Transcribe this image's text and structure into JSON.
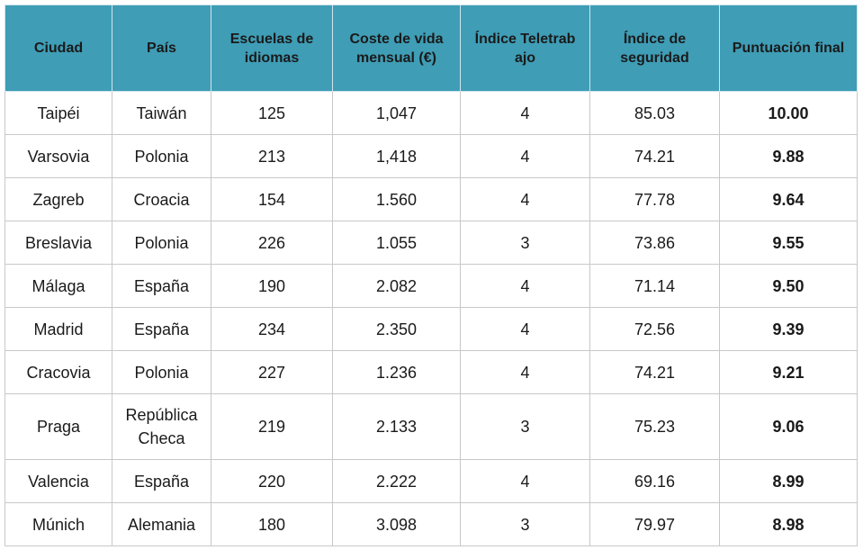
{
  "table": {
    "header": [
      "Ciudad",
      "País",
      "Escuelas de idiomas",
      "Coste de vida mensual (€)",
      "Índice Teletrabajo",
      "Índice de seguridad",
      "Puntuación final"
    ],
    "rows": [
      [
        "Taipéi",
        "Taiwán",
        "125",
        "1,047",
        "4",
        "85.03",
        "10.00"
      ],
      [
        "Varsovia",
        "Polonia",
        "213",
        "1,418",
        "4",
        "74.21",
        "9.88"
      ],
      [
        "Zagreb",
        "Croacia",
        "154",
        "1.560",
        "4",
        "77.78",
        "9.64"
      ],
      [
        "Breslavia",
        "Polonia",
        "226",
        "1.055",
        "3",
        "73.86",
        "9.55"
      ],
      [
        "Málaga",
        "España",
        "190",
        "2.082",
        "4",
        "71.14",
        "9.50"
      ],
      [
        "Madrid",
        "España",
        "234",
        "2.350",
        "4",
        "72.56",
        "9.39"
      ],
      [
        "Cracovia",
        "Polonia",
        "227",
        "1.236",
        "4",
        "74.21",
        "9.21"
      ],
      [
        "Praga",
        "República Checa",
        "219",
        "2.133",
        "3",
        "75.23",
        "9.06"
      ],
      [
        "Valencia",
        "España",
        "220",
        "2.222",
        "4",
        "69.16",
        "8.99"
      ],
      [
        "Múnich",
        "Alemania",
        "180",
        "3.098",
        "3",
        "79.97",
        "8.98"
      ]
    ]
  }
}
